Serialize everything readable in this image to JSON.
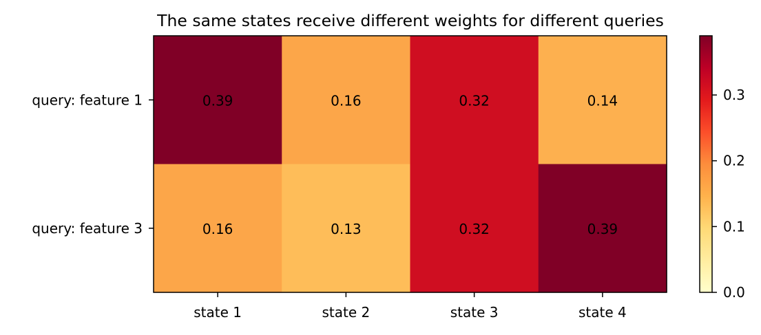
{
  "chart_data": {
    "type": "heatmap",
    "title": "The same states receive different weights for different queries",
    "xlabel": "",
    "ylabel": "",
    "x_categories": [
      "state 1",
      "state 2",
      "state 3",
      "state 4"
    ],
    "y_categories": [
      "query: feature 1",
      "query: feature 3"
    ],
    "values": [
      [
        0.39,
        0.16,
        0.32,
        0.14
      ],
      [
        0.16,
        0.13,
        0.32,
        0.39
      ]
    ],
    "value_labels": [
      [
        "0.39",
        "0.16",
        "0.32",
        "0.14"
      ],
      [
        "0.16",
        "0.13",
        "0.32",
        "0.39"
      ]
    ],
    "colorbar": {
      "colormap": "YlOrRd",
      "range": [
        0.0,
        0.39
      ],
      "ticks": [
        0.0,
        0.1,
        0.2,
        0.3
      ],
      "tick_labels": [
        "0.0",
        "0.1",
        "0.2",
        "0.3"
      ]
    },
    "colors": {
      "cell_colors": [
        [
          "#800026",
          "#fca649",
          "#cf0e21",
          "#fdb04f"
        ],
        [
          "#fca649",
          "#febd59",
          "#cf0e21",
          "#800026"
        ]
      ],
      "colorbar_stops": [
        "#ffffcc",
        "#ffeda0",
        "#fed976",
        "#feb24c",
        "#fd8d3c",
        "#fc4e2a",
        "#e31a1c",
        "#bd0026",
        "#800026"
      ]
    },
    "grid": false
  }
}
